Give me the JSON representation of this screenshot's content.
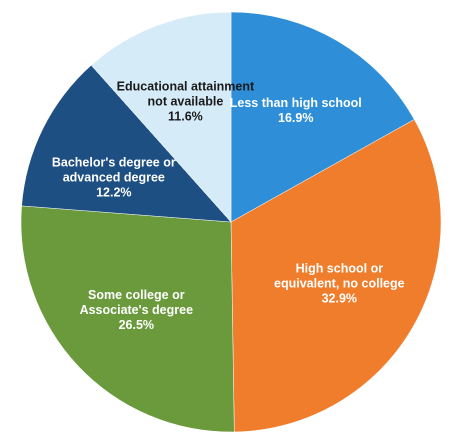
{
  "chart_data": {
    "type": "pie",
    "title": "",
    "slices": [
      {
        "label_lines": [
          "Less than high school"
        ],
        "value_label": "16.9%",
        "value": 16.9,
        "color": "#2e8fd8",
        "text_color": "#ffffff"
      },
      {
        "label_lines": [
          "High school or",
          "equivalent, no college"
        ],
        "value_label": "32.9%",
        "value": 32.9,
        "color": "#f07d2c",
        "text_color": "#ffffff"
      },
      {
        "label_lines": [
          "Some college or",
          "Associate's degree"
        ],
        "value_label": "26.5%",
        "value": 26.5,
        "color": "#6a9a3c",
        "text_color": "#ffffff"
      },
      {
        "label_lines": [
          "Bachelor's degree or",
          "advanced degree"
        ],
        "value_label": "12.2%",
        "value": 12.2,
        "color": "#1d4f82",
        "text_color": "#ffffff"
      },
      {
        "label_lines": [
          "Educational attainment",
          "not available"
        ],
        "value_label": "11.6%",
        "value": 11.6,
        "color": "#d6ebf8",
        "text_color": "#1a1a1a"
      }
    ]
  }
}
